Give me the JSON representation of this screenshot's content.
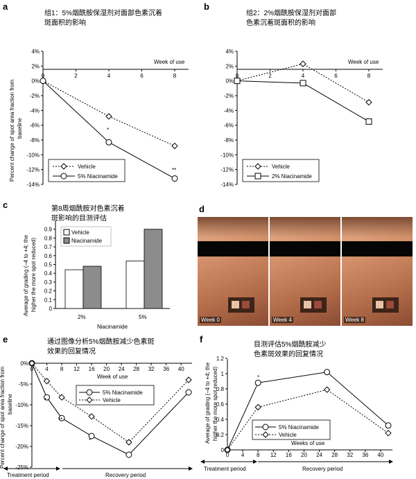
{
  "panels": {
    "a": {
      "letter": "a",
      "title_line1": "组1：5%烟酰胺保湿剂对面部色素沉着",
      "title_line2": "斑面积的影响",
      "ylabel_line1": "Percent change of spot area fraction from",
      "ylabel_line2": "baseline",
      "xlabel": "Week of use",
      "yticks": [
        "4%",
        "2%",
        "0%",
        "-2%",
        "-4%",
        "-6%",
        "-8%",
        "-10%",
        "-12%",
        "-14%"
      ],
      "xticks": [
        "0",
        "2",
        "4",
        "6",
        "8"
      ],
      "legend": [
        "Vehicle",
        "5% Niacinamide"
      ],
      "annotations": [
        "*",
        "**"
      ]
    },
    "b": {
      "letter": "b",
      "title_line1": "组2：2%烟酰胺保湿剂对面部",
      "title_line2": "色素沉着斑面积的影响",
      "xlabel": "Week of use",
      "yticks": [
        "4%",
        "2%",
        "0%",
        "-2%",
        "-4%",
        "-6%",
        "-8%",
        "-10%",
        "-12%",
        "-14%"
      ],
      "xticks": [
        "0",
        "2",
        "4",
        "6",
        "8"
      ],
      "legend": [
        "Vehicle",
        "2% Niacinamide"
      ]
    },
    "c": {
      "letter": "c",
      "title_line1": "第8周烟酰胺对色素沉着",
      "title_line2": "斑影响的目测评估",
      "ylabel_line1": "Average of grading (–4 to +4; the",
      "ylabel_line2": "higher the more spot reduced)",
      "xlabel": "Niacinamide",
      "yticks": [
        "0",
        "0.1",
        "0.2",
        "0.3",
        "0.4",
        "0.5",
        "0.6",
        "0.7",
        "0.8",
        "0.9"
      ],
      "legend": [
        "Vehicle",
        "Niacinamide"
      ]
    },
    "d": {
      "letter": "d",
      "photos": [
        "Week 0",
        "Week 4",
        "Week 8"
      ]
    },
    "e": {
      "letter": "e",
      "title_line1": "通过图像分析5%烟酰胺减少色素斑",
      "title_line2": "效果的回复情况",
      "ylabel_line1": "Percent change of spot area fraction from",
      "ylabel_line2": "baseline",
      "xlabel": "Week of use",
      "yticks": [
        "0%",
        "-5%",
        "-10%",
        "-15%",
        "-20%",
        "-25%"
      ],
      "xticks": [
        "0",
        "4",
        "8",
        "12",
        "16",
        "20",
        "24",
        "28",
        "32",
        "36",
        "40"
      ],
      "legend": [
        "5% Niacinamide",
        "Vehicle"
      ],
      "period_treatment": "Treatment period",
      "period_recovery": "Recovery period",
      "annotations": [
        "*",
        "**",
        "*"
      ]
    },
    "f": {
      "letter": "f",
      "title_line1": "目测评估5%烟酰胺减少",
      "title_line2": "色素斑效果的回复情况",
      "ylabel_line1": "Average of grading (–4 to +4; the",
      "ylabel_line2": "higher the more spot reduced)",
      "xlabel": "Weeks of use",
      "yticks": [
        "0",
        "0.2",
        "0.4",
        "0.6",
        "0.8",
        "1",
        "1.2"
      ],
      "xticks": [
        "0",
        "4",
        "8",
        "12",
        "16",
        "20",
        "24",
        "28",
        "32",
        "36",
        "40"
      ],
      "legend": [
        "5% Niacinamide",
        "Vehicle"
      ],
      "period_treatment": "Treatment period",
      "period_recovery": "Recovery period",
      "annotations": [
        "*"
      ]
    }
  },
  "chart_data": [
    {
      "panel": "a",
      "type": "line",
      "xlabel": "Week of use",
      "ylabel": "Percent change of spot area fraction from baseline",
      "xlim": [
        0,
        8
      ],
      "ylim": [
        -14,
        4
      ],
      "series": [
        {
          "name": "Vehicle",
          "x": [
            0,
            4,
            8
          ],
          "y": [
            0,
            -4.8,
            -8.8
          ]
        },
        {
          "name": "5% Niacinamide",
          "x": [
            0,
            4,
            8
          ],
          "y": [
            0,
            -8.3,
            -13.2
          ]
        }
      ]
    },
    {
      "panel": "b",
      "type": "line",
      "xlabel": "Week of use",
      "ylim": [
        -14,
        4
      ],
      "xlim": [
        0,
        8
      ],
      "series": [
        {
          "name": "Vehicle",
          "x": [
            0,
            4,
            8
          ],
          "y": [
            0,
            2.3,
            -2.9
          ]
        },
        {
          "name": "2% Niacinamide",
          "x": [
            0,
            4,
            8
          ],
          "y": [
            0,
            -0.3,
            -5.5
          ]
        }
      ]
    },
    {
      "panel": "c",
      "type": "bar",
      "xlabel": "Niacinamide",
      "ylabel": "Average of grading (–4 to +4; the higher the more spot reduced)",
      "categories": [
        "2%",
        "5%"
      ],
      "ylim": [
        0,
        1.0
      ],
      "series": [
        {
          "name": "Vehicle",
          "values": [
            0.44,
            0.54
          ]
        },
        {
          "name": "Niacinamide",
          "values": [
            0.48,
            0.9
          ]
        }
      ]
    },
    {
      "panel": "e",
      "type": "line",
      "xlabel": "Week of use",
      "ylabel": "Percent change of spot area fraction from baseline",
      "xlim": [
        0,
        42
      ],
      "ylim": [
        -25,
        0
      ],
      "series": [
        {
          "name": "5% Niacinamide",
          "x": [
            0,
            4,
            8,
            16,
            26,
            42
          ],
          "y": [
            0,
            -8.2,
            -13.2,
            -17.5,
            -22.0,
            -7.0
          ]
        },
        {
          "name": "Vehicle",
          "x": [
            0,
            4,
            8,
            16,
            26,
            42
          ],
          "y": [
            0,
            -4.3,
            -8.2,
            -12.8,
            -19.0,
            -4.0
          ]
        }
      ]
    },
    {
      "panel": "f",
      "type": "line",
      "xlabel": "Weeks of use",
      "ylabel": "Average of grading (–4 to +4; the higher the more spot reduced)",
      "xlim": [
        0,
        42
      ],
      "ylim": [
        0,
        1.2
      ],
      "series": [
        {
          "name": "5% Niacinamide",
          "x": [
            0,
            8,
            26,
            42
          ],
          "y": [
            0,
            0.88,
            1.02,
            0.32
          ]
        },
        {
          "name": "Vehicle",
          "x": [
            0,
            8,
            26,
            42
          ],
          "y": [
            0,
            0.56,
            0.79,
            0.22
          ]
        }
      ]
    }
  ]
}
